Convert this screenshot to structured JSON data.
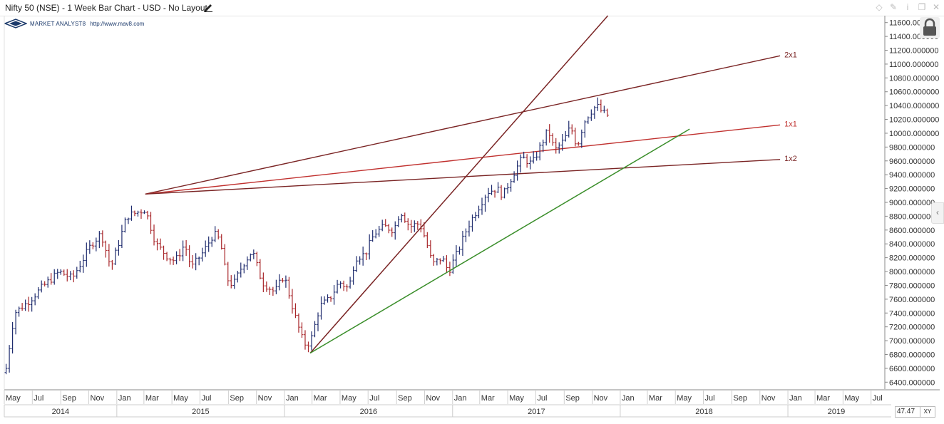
{
  "window": {
    "title": "Nifty 50 (NSE) - 1 Week Bar Chart - USD - No Layout"
  },
  "branding": {
    "name": "MARKET ANALYST8",
    "url": "http://www.mav8.com"
  },
  "controls": {
    "zoom_value": "47.47",
    "xy_label": "XY"
  },
  "colors": {
    "bar_up": "#1f2c6e",
    "bar_down": "#a8262a",
    "fan_line_dark": "#7a2424",
    "fan_line_red": "#c0302e",
    "trend_line": "#3a8e2a",
    "axis": "#888888"
  },
  "chart_data": {
    "type": "bar",
    "subtype": "ohlc-weekly",
    "title": "Nifty 50 (NSE) - 1 Week Bar Chart - USD - No Layout",
    "y_axis": {
      "ticks": [
        6400,
        6600,
        6800,
        7000,
        7200,
        7400,
        7600,
        7800,
        8000,
        8200,
        8400,
        8600,
        8800,
        9000,
        9200,
        9400,
        9600,
        9800,
        10000,
        10200,
        10400,
        10600,
        10800,
        11000,
        11200,
        11400,
        11600
      ],
      "tick_labels": [
        "6400.000000",
        "6600.000000",
        "6800.000000",
        "7000.000000",
        "7200.000000",
        "7400.000000",
        "7600.000000",
        "7800.000000",
        "8000.000000",
        "8200.000000",
        "8400.000000",
        "8600.000000",
        "8800.000000",
        "9000.000000",
        "9200.000000",
        "9400.000000",
        "9600.000000",
        "9800.000000",
        "10000.000000",
        "10200.000000",
        "10400.000000",
        "10600.000000",
        "10800.000000",
        "11000.000000",
        "11200.000000",
        "11400.000000",
        "11600.000000"
      ],
      "range": [
        6300,
        11700
      ],
      "position": "right"
    },
    "x_axis": {
      "range": [
        "2014-05-01",
        "2019-07-31"
      ],
      "months": [
        {
          "label": "May",
          "date": "2014-05-01"
        },
        {
          "label": "Jul",
          "date": "2014-07-01"
        },
        {
          "label": "Sep",
          "date": "2014-09-01"
        },
        {
          "label": "Nov",
          "date": "2014-11-01"
        },
        {
          "label": "Jan",
          "date": "2015-01-01"
        },
        {
          "label": "Mar",
          "date": "2015-03-01"
        },
        {
          "label": "May",
          "date": "2015-05-01"
        },
        {
          "label": "Jul",
          "date": "2015-07-01"
        },
        {
          "label": "Sep",
          "date": "2015-09-01"
        },
        {
          "label": "Nov",
          "date": "2015-11-01"
        },
        {
          "label": "Jan",
          "date": "2016-01-01"
        },
        {
          "label": "Mar",
          "date": "2016-03-01"
        },
        {
          "label": "May",
          "date": "2016-05-01"
        },
        {
          "label": "Jul",
          "date": "2016-07-01"
        },
        {
          "label": "Sep",
          "date": "2016-09-01"
        },
        {
          "label": "Nov",
          "date": "2016-11-01"
        },
        {
          "label": "Jan",
          "date": "2017-01-01"
        },
        {
          "label": "Mar",
          "date": "2017-03-01"
        },
        {
          "label": "May",
          "date": "2017-05-01"
        },
        {
          "label": "Jul",
          "date": "2017-07-01"
        },
        {
          "label": "Sep",
          "date": "2017-09-01"
        },
        {
          "label": "Nov",
          "date": "2017-11-01"
        },
        {
          "label": "Jan",
          "date": "2018-01-01"
        },
        {
          "label": "Mar",
          "date": "2018-03-01"
        },
        {
          "label": "May",
          "date": "2018-05-01"
        },
        {
          "label": "Jul",
          "date": "2018-07-01"
        },
        {
          "label": "Sep",
          "date": "2018-09-01"
        },
        {
          "label": "Nov",
          "date": "2018-11-01"
        },
        {
          "label": "Jan",
          "date": "2019-01-01"
        },
        {
          "label": "Mar",
          "date": "2019-03-01"
        },
        {
          "label": "May",
          "date": "2019-05-01"
        },
        {
          "label": "Jul",
          "date": "2019-07-01"
        }
      ],
      "years": [
        {
          "label": "2014",
          "date": "2014-05-01"
        },
        {
          "label": "2015",
          "date": "2015-01-01"
        },
        {
          "label": "2016",
          "date": "2016-01-01"
        },
        {
          "label": "2017",
          "date": "2017-01-01"
        },
        {
          "label": "2018",
          "date": "2018-01-01"
        },
        {
          "label": "2019",
          "date": "2019-01-01"
        }
      ]
    },
    "series": [
      {
        "kind": "weekly-price-anchors",
        "points": [
          [
            "2014-05-05",
            6600
          ],
          [
            "2014-05-23",
            7400
          ],
          [
            "2014-06-20",
            7550
          ],
          [
            "2014-07-25",
            7790
          ],
          [
            "2014-08-29",
            8000
          ],
          [
            "2014-09-26",
            7900
          ],
          [
            "2014-11-07",
            8400
          ],
          [
            "2014-11-28",
            8550
          ],
          [
            "2014-12-19",
            8050
          ],
          [
            "2015-01-02",
            8350
          ],
          [
            "2015-01-23",
            8800
          ],
          [
            "2015-03-04",
            8900
          ],
          [
            "2015-03-27",
            8400
          ],
          [
            "2015-04-24",
            8200
          ],
          [
            "2015-05-08",
            8150
          ],
          [
            "2015-05-29",
            8400
          ],
          [
            "2015-06-12",
            8050
          ],
          [
            "2015-07-10",
            8300
          ],
          [
            "2015-07-31",
            8550
          ],
          [
            "2015-08-14",
            8450
          ],
          [
            "2015-08-28",
            7900
          ],
          [
            "2015-09-11",
            7800
          ],
          [
            "2015-10-02",
            8100
          ],
          [
            "2015-10-23",
            8300
          ],
          [
            "2015-11-13",
            7850
          ],
          [
            "2015-12-11",
            7700
          ],
          [
            "2015-12-31",
            7950
          ],
          [
            "2016-01-22",
            7400
          ],
          [
            "2016-02-12",
            6950
          ],
          [
            "2016-02-26",
            6970
          ],
          [
            "2016-03-18",
            7500
          ],
          [
            "2016-04-08",
            7600
          ],
          [
            "2016-04-29",
            7850
          ],
          [
            "2016-05-20",
            7750
          ],
          [
            "2016-06-03",
            8200
          ],
          [
            "2016-06-24",
            8250
          ],
          [
            "2016-07-15",
            8550
          ],
          [
            "2016-08-05",
            8650
          ],
          [
            "2016-08-26",
            8600
          ],
          [
            "2016-09-09",
            8880
          ],
          [
            "2016-09-30",
            8650
          ],
          [
            "2016-10-21",
            8700
          ],
          [
            "2016-11-04",
            8450
          ],
          [
            "2016-11-18",
            8100
          ],
          [
            "2016-12-09",
            8200
          ],
          [
            "2016-12-23",
            8000
          ],
          [
            "2017-01-13",
            8300
          ],
          [
            "2017-02-03",
            8650
          ],
          [
            "2017-02-24",
            8900
          ],
          [
            "2017-03-17",
            9150
          ],
          [
            "2017-04-07",
            9200
          ],
          [
            "2017-04-21",
            9100
          ],
          [
            "2017-05-12",
            9400
          ],
          [
            "2017-06-02",
            9650
          ],
          [
            "2017-06-23",
            9550
          ],
          [
            "2017-07-14",
            9850
          ],
          [
            "2017-07-28",
            10050
          ],
          [
            "2017-08-11",
            9750
          ],
          [
            "2017-09-01",
            9900
          ],
          [
            "2017-09-15",
            10100
          ],
          [
            "2017-09-29",
            9800
          ],
          [
            "2017-10-13",
            10150
          ],
          [
            "2017-10-27",
            10300
          ],
          [
            "2017-11-10",
            10400
          ],
          [
            "2017-11-24",
            10300
          ],
          [
            "2017-12-08",
            10250
          ]
        ]
      }
    ],
    "drawings": [
      {
        "type": "gann-fan",
        "origin": [
          "2015-03-04",
          9120
        ],
        "lines": [
          {
            "label": "2x1",
            "end": [
              "2018-12-15",
              11120
            ]
          },
          {
            "label": "1x1",
            "end": [
              "2018-12-15",
              10120
            ]
          },
          {
            "label": "1x2",
            "end": [
              "2018-12-15",
              9620
            ]
          }
        ]
      },
      {
        "type": "line",
        "from": [
          "2016-02-26",
          6820
        ],
        "to": [
          "2017-12-25",
          11850
        ]
      },
      {
        "type": "line",
        "from": [
          "2016-02-26",
          6820
        ],
        "to": [
          "2018-06-01",
          10060
        ]
      }
    ],
    "grid": false,
    "legend": "none"
  }
}
